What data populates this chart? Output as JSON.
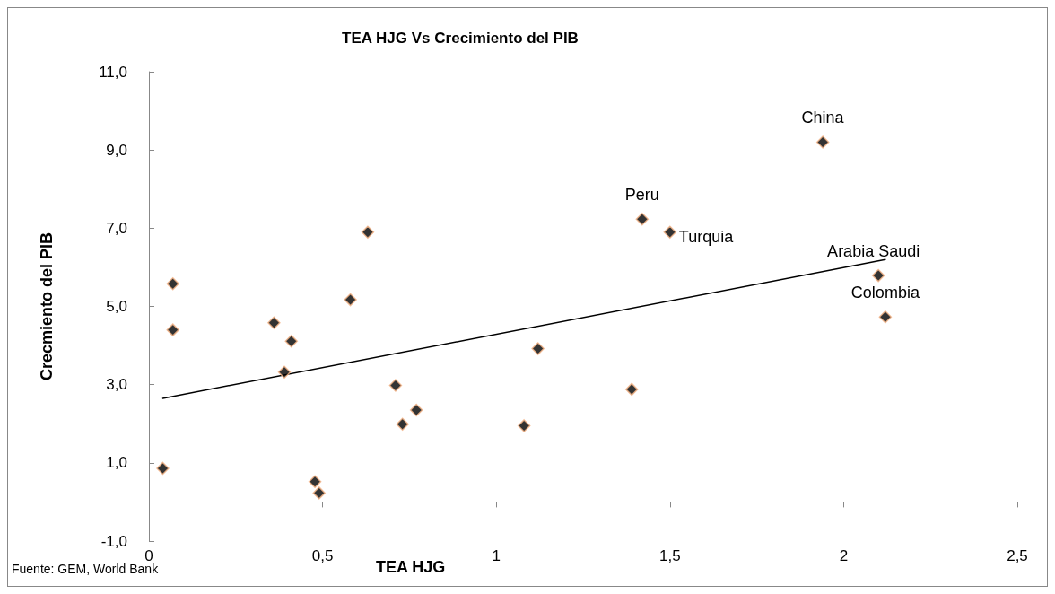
{
  "chart_data": {
    "type": "scatter",
    "title": "TEA HJG Vs Crecimiento del PIB",
    "xlabel": "TEA HJG",
    "ylabel": "Crecmiento del PIB",
    "annotations": [
      "Fuente: GEM, World Bank",
      {
        "text": "China",
        "x": 1.94,
        "y": 9.2
      },
      {
        "text": "Peru",
        "x": 1.42,
        "y": 7.23
      },
      {
        "text": "Turquia",
        "x": 1.5,
        "y": 6.9
      },
      {
        "text": "Arabia Saudi",
        "x": 2.1,
        "y": 5.79
      },
      {
        "text": "Colombia",
        "x": 2.12,
        "y": 4.73
      }
    ],
    "series": [
      {
        "color": "#000000",
        "marker": "diamond",
        "x": [
          0.04,
          0.069,
          0.069,
          0.36,
          0.41,
          0.39,
          0.58,
          0.478,
          0.49,
          0.71,
          0.77,
          0.73,
          0.63,
          1.12,
          1.08,
          1.39,
          1.42,
          1.5,
          1.94,
          2.1,
          2.12
        ],
        "values": [
          0.86,
          5.58,
          4.4,
          4.58,
          4.11,
          3.32,
          5.17,
          0.52,
          0.23,
          2.98,
          2.35,
          1.99,
          6.9,
          3.92,
          1.95,
          2.88,
          7.23,
          6.9,
          9.2,
          5.79,
          4.73
        ]
      },
      {
        "type": "line",
        "color": "#000000",
        "marker": "none",
        "x": [
          0.04,
          2.12
        ],
        "values": [
          2.65,
          6.2
        ]
      }
    ],
    "xlim": [
      0,
      2.5
    ],
    "xticks": [
      0,
      {
        "value": 0.5,
        "label": "0,5"
      },
      1,
      {
        "value": 1.5,
        "label": "1,5"
      },
      2,
      {
        "value": 2.5,
        "label": "2,5"
      }
    ],
    "ylim": [
      -1,
      11
    ],
    "yticks": [
      {
        "value": -1,
        "label": "-1,0"
      },
      {
        "value": 1,
        "label": "1,0"
      },
      {
        "value": 3,
        "label": "3,0"
      },
      {
        "value": 5,
        "label": "5,0"
      },
      {
        "value": 7,
        "label": "7,0"
      },
      {
        "value": 9,
        "label": "9,0"
      },
      {
        "value": 11,
        "label": "11,0"
      }
    ],
    "grid": false
  }
}
